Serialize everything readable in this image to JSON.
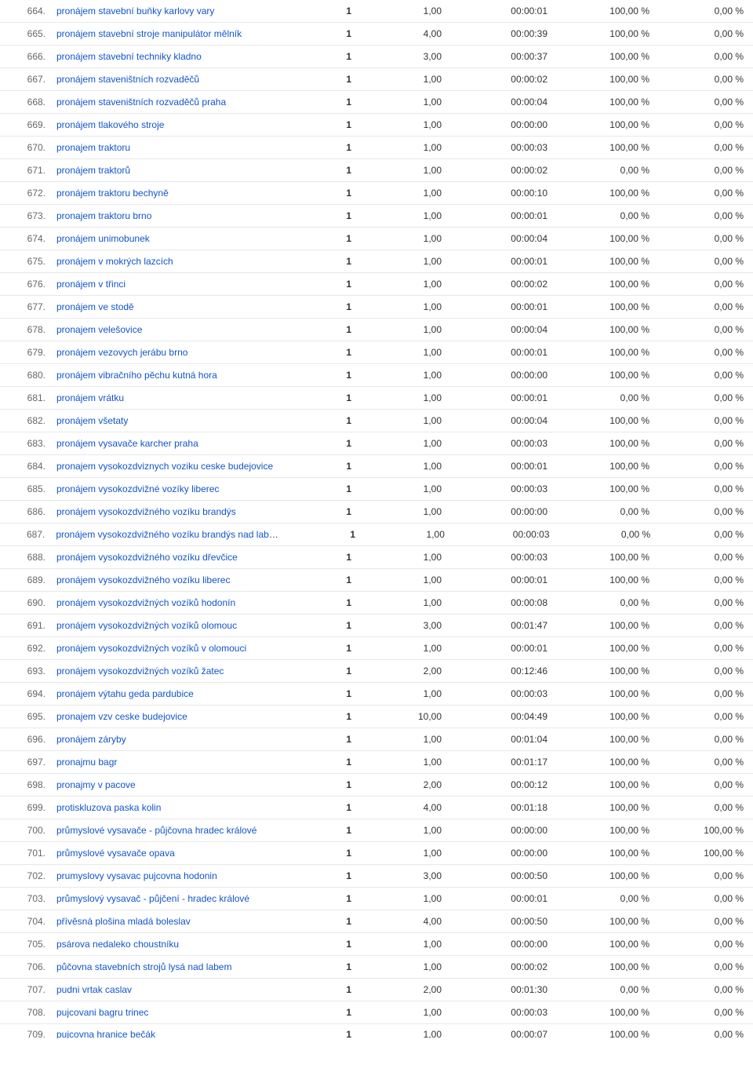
{
  "link_color": "#1155cc",
  "text_color": "#333333",
  "border_color": "#e8e8e8",
  "rows": [
    {
      "idx": "664.",
      "term": "pronájem stavební buňky karlovy vary",
      "c1": "1",
      "c2": "1,00",
      "c3": "00:00:01",
      "c4": "100,00 %",
      "c5": "0,00 %"
    },
    {
      "idx": "665.",
      "term": "pronájem stavební stroje manipulátor mělník",
      "c1": "1",
      "c2": "4,00",
      "c3": "00:00:39",
      "c4": "100,00 %",
      "c5": "0,00 %"
    },
    {
      "idx": "666.",
      "term": "pronájem stavební techniky kladno",
      "c1": "1",
      "c2": "3,00",
      "c3": "00:00:37",
      "c4": "100,00 %",
      "c5": "0,00 %"
    },
    {
      "idx": "667.",
      "term": "pronájem staveništních rozvaděčů",
      "c1": "1",
      "c2": "1,00",
      "c3": "00:00:02",
      "c4": "100,00 %",
      "c5": "0,00 %"
    },
    {
      "idx": "668.",
      "term": "pronájem staveništních rozvaděčů praha",
      "c1": "1",
      "c2": "1,00",
      "c3": "00:00:04",
      "c4": "100,00 %",
      "c5": "0,00 %"
    },
    {
      "idx": "669.",
      "term": "pronájem tlakového stroje",
      "c1": "1",
      "c2": "1,00",
      "c3": "00:00:00",
      "c4": "100,00 %",
      "c5": "0,00 %"
    },
    {
      "idx": "670.",
      "term": "pronajem traktoru",
      "c1": "1",
      "c2": "1,00",
      "c3": "00:00:03",
      "c4": "100,00 %",
      "c5": "0,00 %"
    },
    {
      "idx": "671.",
      "term": "pronájem traktorů",
      "c1": "1",
      "c2": "1,00",
      "c3": "00:00:02",
      "c4": "0,00 %",
      "c5": "0,00 %"
    },
    {
      "idx": "672.",
      "term": "pronájem traktoru bechyně",
      "c1": "1",
      "c2": "1,00",
      "c3": "00:00:10",
      "c4": "100,00 %",
      "c5": "0,00 %"
    },
    {
      "idx": "673.",
      "term": "pronajem traktoru brno",
      "c1": "1",
      "c2": "1,00",
      "c3": "00:00:01",
      "c4": "0,00 %",
      "c5": "0,00 %"
    },
    {
      "idx": "674.",
      "term": "pronájem unimobunek",
      "c1": "1",
      "c2": "1,00",
      "c3": "00:00:04",
      "c4": "100,00 %",
      "c5": "0,00 %"
    },
    {
      "idx": "675.",
      "term": "pronájem v mokrých lazcích",
      "c1": "1",
      "c2": "1,00",
      "c3": "00:00:01",
      "c4": "100,00 %",
      "c5": "0,00 %"
    },
    {
      "idx": "676.",
      "term": "pronájem v třinci",
      "c1": "1",
      "c2": "1,00",
      "c3": "00:00:02",
      "c4": "100,00 %",
      "c5": "0,00 %"
    },
    {
      "idx": "677.",
      "term": "pronájem ve stodě",
      "c1": "1",
      "c2": "1,00",
      "c3": "00:00:01",
      "c4": "100,00 %",
      "c5": "0,00 %"
    },
    {
      "idx": "678.",
      "term": "pronajem velešovice",
      "c1": "1",
      "c2": "1,00",
      "c3": "00:00:04",
      "c4": "100,00 %",
      "c5": "0,00 %"
    },
    {
      "idx": "679.",
      "term": "pronájem vezovych jerábu brno",
      "c1": "1",
      "c2": "1,00",
      "c3": "00:00:01",
      "c4": "100,00 %",
      "c5": "0,00 %"
    },
    {
      "idx": "680.",
      "term": "pronájem vibračního pěchu kutná hora",
      "c1": "1",
      "c2": "1,00",
      "c3": "00:00:00",
      "c4": "100,00 %",
      "c5": "0,00 %"
    },
    {
      "idx": "681.",
      "term": "pronájem vrátku",
      "c1": "1",
      "c2": "1,00",
      "c3": "00:00:01",
      "c4": "0,00 %",
      "c5": "0,00 %"
    },
    {
      "idx": "682.",
      "term": "pronájem všetaty",
      "c1": "1",
      "c2": "1,00",
      "c3": "00:00:04",
      "c4": "100,00 %",
      "c5": "0,00 %"
    },
    {
      "idx": "683.",
      "term": "pronájem vysavače karcher praha",
      "c1": "1",
      "c2": "1,00",
      "c3": "00:00:03",
      "c4": "100,00 %",
      "c5": "0,00 %"
    },
    {
      "idx": "684.",
      "term": "pronajem vysokozdviznych voziku ceske budejovice",
      "c1": "1",
      "c2": "1,00",
      "c3": "00:00:01",
      "c4": "100,00 %",
      "c5": "0,00 %"
    },
    {
      "idx": "685.",
      "term": "pronájem vysokozdvižné vozíky liberec",
      "c1": "1",
      "c2": "1,00",
      "c3": "00:00:03",
      "c4": "100,00 %",
      "c5": "0,00 %"
    },
    {
      "idx": "686.",
      "term": "pronájem vysokozdvižného vozíku brandýs",
      "c1": "1",
      "c2": "1,00",
      "c3": "00:00:00",
      "c4": "0,00 %",
      "c5": "0,00 %"
    },
    {
      "idx": "687.",
      "term": "pronájem vysokozdvižného vozíku brandýs nad labem",
      "c1": "1",
      "c2": "1,00",
      "c3": "00:00:03",
      "c4": "0,00 %",
      "c5": "0,00 %"
    },
    {
      "idx": "688.",
      "term": "pronájem vysokozdvižného vozíku dřevčice",
      "c1": "1",
      "c2": "1,00",
      "c3": "00:00:03",
      "c4": "100,00 %",
      "c5": "0,00 %"
    },
    {
      "idx": "689.",
      "term": "pronájem vysokozdvižného vozíku liberec",
      "c1": "1",
      "c2": "1,00",
      "c3": "00:00:01",
      "c4": "100,00 %",
      "c5": "0,00 %"
    },
    {
      "idx": "690.",
      "term": "pronájem vysokozdvižných vozíků hodonín",
      "c1": "1",
      "c2": "1,00",
      "c3": "00:00:08",
      "c4": "0,00 %",
      "c5": "0,00 %"
    },
    {
      "idx": "691.",
      "term": "pronájem vysokozdvižných vozíků olomouc",
      "c1": "1",
      "c2": "3,00",
      "c3": "00:01:47",
      "c4": "100,00 %",
      "c5": "0,00 %"
    },
    {
      "idx": "692.",
      "term": "pronájem vysokozdvižných vozíků v olomouci",
      "c1": "1",
      "c2": "1,00",
      "c3": "00:00:01",
      "c4": "100,00 %",
      "c5": "0,00 %"
    },
    {
      "idx": "693.",
      "term": "pronájem vysokozdvižných vozíků žatec",
      "c1": "1",
      "c2": "2,00",
      "c3": "00:12:46",
      "c4": "100,00 %",
      "c5": "0,00 %"
    },
    {
      "idx": "694.",
      "term": "pronájem výtahu geda pardubice",
      "c1": "1",
      "c2": "1,00",
      "c3": "00:00:03",
      "c4": "100,00 %",
      "c5": "0,00 %"
    },
    {
      "idx": "695.",
      "term": "pronajem vzv ceske budejovice",
      "c1": "1",
      "c2": "10,00",
      "c3": "00:04:49",
      "c4": "100,00 %",
      "c5": "0,00 %"
    },
    {
      "idx": "696.",
      "term": "pronájem záryby",
      "c1": "1",
      "c2": "1,00",
      "c3": "00:01:04",
      "c4": "100,00 %",
      "c5": "0,00 %"
    },
    {
      "idx": "697.",
      "term": "pronajmu bagr",
      "c1": "1",
      "c2": "1,00",
      "c3": "00:01:17",
      "c4": "100,00 %",
      "c5": "0,00 %"
    },
    {
      "idx": "698.",
      "term": "pronajmy v pacove",
      "c1": "1",
      "c2": "2,00",
      "c3": "00:00:12",
      "c4": "100,00 %",
      "c5": "0,00 %"
    },
    {
      "idx": "699.",
      "term": "protiskluzova paska kolin",
      "c1": "1",
      "c2": "4,00",
      "c3": "00:01:18",
      "c4": "100,00 %",
      "c5": "0,00 %"
    },
    {
      "idx": "700.",
      "term": "průmyslové vysavače - půjčovna hradec králové",
      "c1": "1",
      "c2": "1,00",
      "c3": "00:00:00",
      "c4": "100,00 %",
      "c5": "100,00 %"
    },
    {
      "idx": "701.",
      "term": "průmyslové vysavače opava",
      "c1": "1",
      "c2": "1,00",
      "c3": "00:00:00",
      "c4": "100,00 %",
      "c5": "100,00 %"
    },
    {
      "idx": "702.",
      "term": "prumyslovy vysavac pujcovna hodonin",
      "c1": "1",
      "c2": "3,00",
      "c3": "00:00:50",
      "c4": "100,00 %",
      "c5": "0,00 %"
    },
    {
      "idx": "703.",
      "term": "průmyslový vysavač - půjčení - hradec králové",
      "c1": "1",
      "c2": "1,00",
      "c3": "00:00:01",
      "c4": "0,00 %",
      "c5": "0,00 %"
    },
    {
      "idx": "704.",
      "term": "přívěsná plošina mladá boleslav",
      "c1": "1",
      "c2": "4,00",
      "c3": "00:00:50",
      "c4": "100,00 %",
      "c5": "0,00 %"
    },
    {
      "idx": "705.",
      "term": "psárova nedaleko choustníku",
      "c1": "1",
      "c2": "1,00",
      "c3": "00:00:00",
      "c4": "100,00 %",
      "c5": "0,00 %"
    },
    {
      "idx": "706.",
      "term": "půčovna stavebních strojů lysá nad labem",
      "c1": "1",
      "c2": "1,00",
      "c3": "00:00:02",
      "c4": "100,00 %",
      "c5": "0,00 %"
    },
    {
      "idx": "707.",
      "term": "pudni vrtak caslav",
      "c1": "1",
      "c2": "2,00",
      "c3": "00:01:30",
      "c4": "0,00 %",
      "c5": "0,00 %"
    },
    {
      "idx": "708.",
      "term": "pujcovani bagru trinec",
      "c1": "1",
      "c2": "1,00",
      "c3": "00:00:03",
      "c4": "100,00 %",
      "c5": "0,00 %"
    }
  ],
  "partial_row": {
    "idx": "709.",
    "term": "pujcovna hranice bečák",
    "c1": "1",
    "c2": "1,00",
    "c3": "00:00:07",
    "c4": "100,00 %",
    "c5": "0,00 %"
  }
}
